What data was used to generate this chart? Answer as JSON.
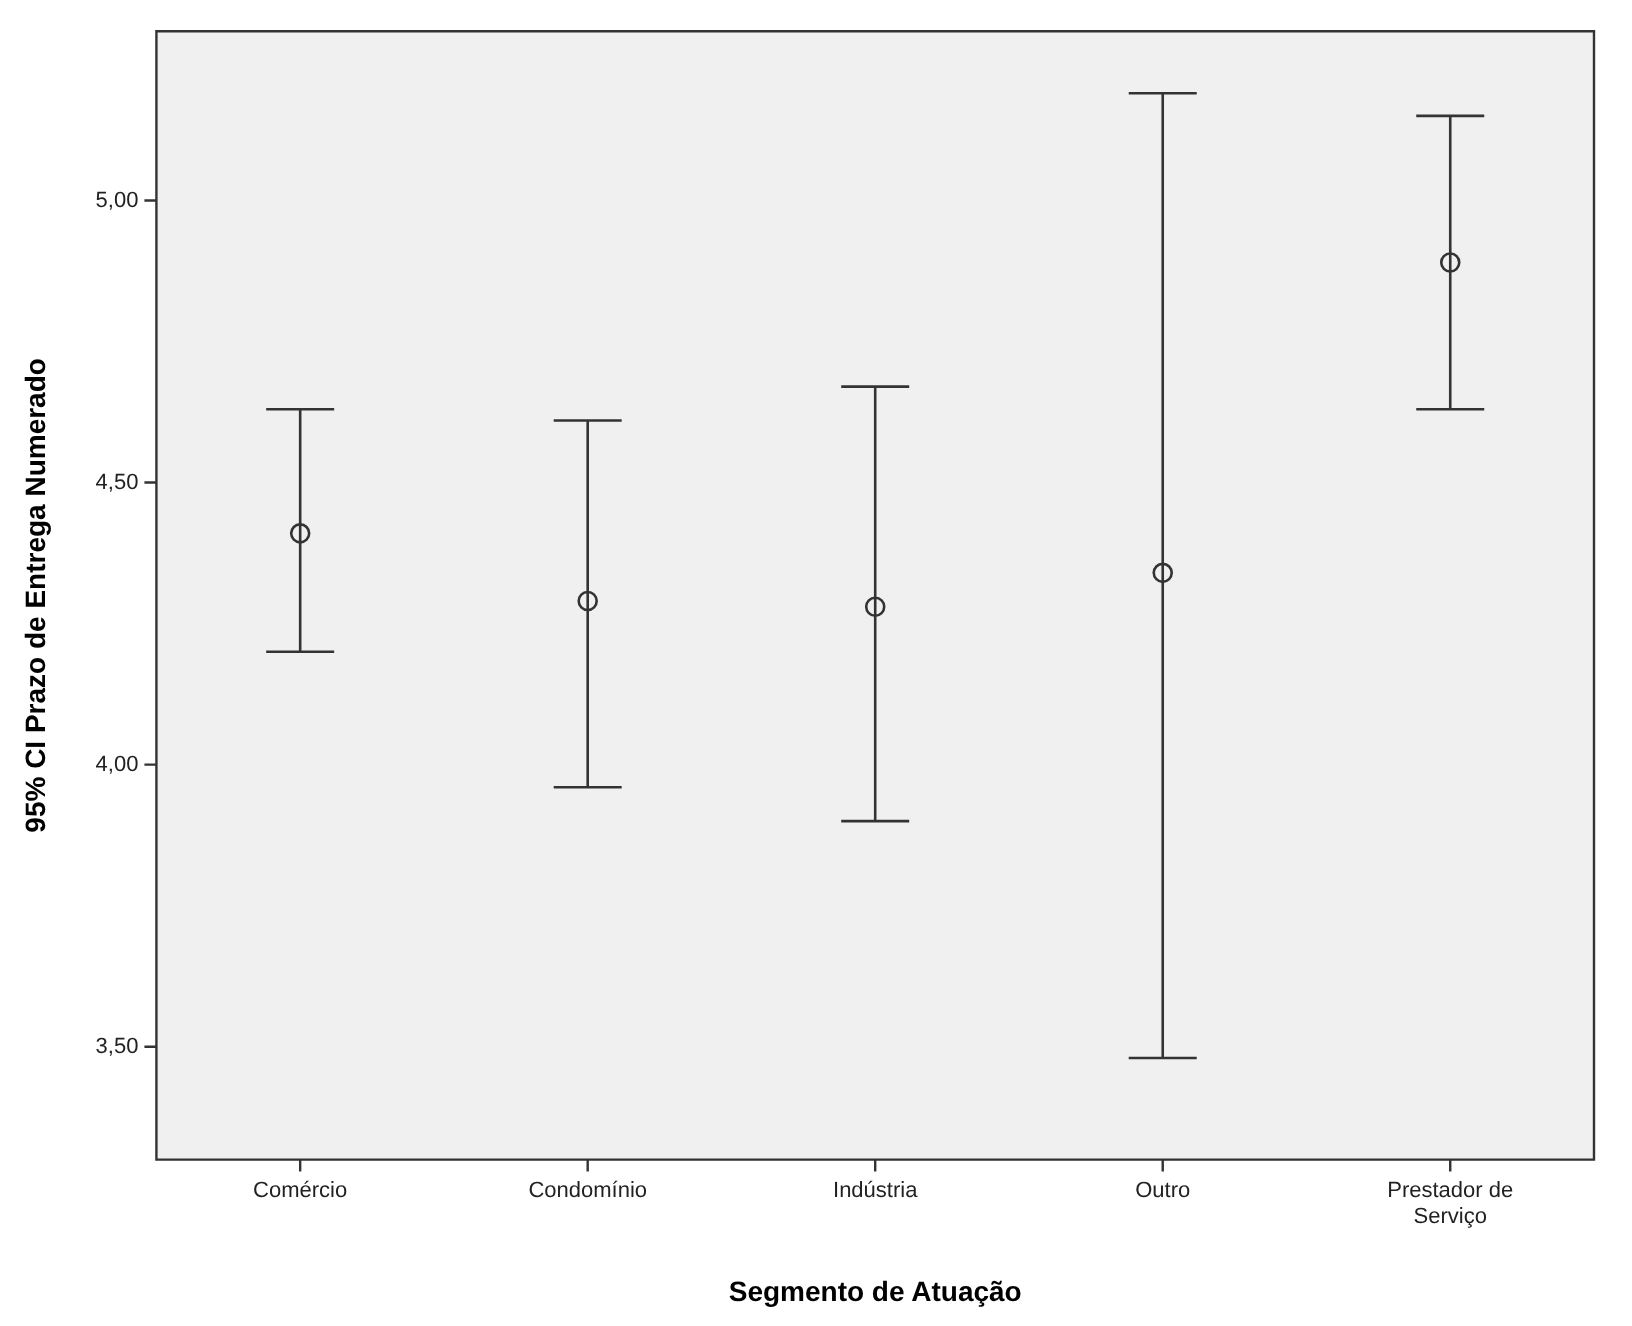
{
  "chart_data": {
    "type": "scatter",
    "xlabel": "Segmento de Atuação",
    "ylabel": "95% CI Prazo de Entrega Numerado",
    "categories": [
      "Comércio",
      "Condomínio",
      "Indústria",
      "Outro",
      "Prestador de Serviço"
    ],
    "series": [
      {
        "color": "#333333",
        "values": [
          4.41,
          4.29,
          4.28,
          4.34,
          4.89
        ],
        "errors": [
          [
            4.2,
            4.63
          ],
          [
            3.96,
            4.61
          ],
          [
            3.9,
            4.67
          ],
          [
            3.48,
            5.19
          ],
          [
            4.63,
            5.15
          ]
        ]
      }
    ],
    "ylim": [
      3.3,
      5.3
    ],
    "yticks": [
      {
        "value": 3.5,
        "label": "3,50"
      },
      {
        "value": 4,
        "label": "4,00"
      },
      {
        "value": 4.5,
        "label": "4,50"
      },
      {
        "value": 5,
        "label": "5,00"
      }
    ],
    "marker": "circle",
    "grid": false,
    "legend": false
  }
}
